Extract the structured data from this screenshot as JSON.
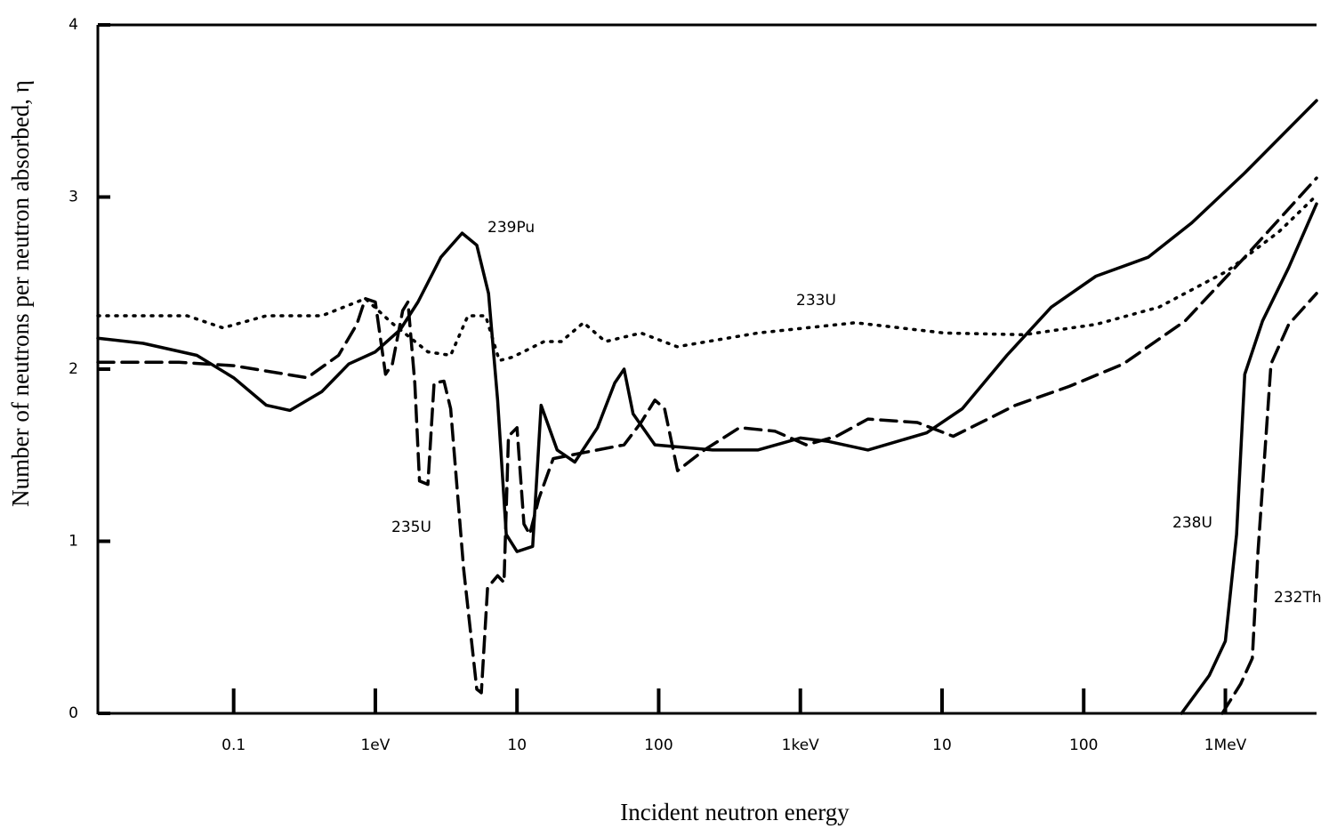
{
  "chart_data": {
    "type": "line",
    "x_label": "Incident neutron energy",
    "y_label": "Number of neutrons per neutron absorbed, η",
    "x_log": true,
    "xlim": [
      0.011,
      4400000
    ],
    "xticks": [
      0.1,
      {
        "value": 1,
        "label": "1eV"
      },
      10,
      100,
      {
        "value": 1000,
        "label": "1keV"
      },
      {
        "value": 10000,
        "label": "10"
      },
      {
        "value": 100000,
        "label": "100"
      },
      {
        "value": 1000000,
        "label": "1MeV"
      }
    ],
    "ylim": [
      0,
      4
    ],
    "yticks": [
      0,
      1,
      2,
      3,
      4
    ],
    "series": [
      {
        "name": "239Pu",
        "color": "#000000",
        "line_style": "solid",
        "x": [
          0.011,
          0.023,
          0.055,
          0.1,
          0.17,
          0.25,
          0.42,
          0.65,
          1,
          1.5,
          2.0,
          2.9,
          4.1,
          5.2,
          6.3,
          7.3,
          8.4,
          10,
          12.9,
          14.8,
          19.2,
          25.6,
          37,
          49,
          57,
          66,
          94,
          240,
          500,
          1000,
          1580,
          3000,
          7800,
          13900,
          28700,
          59000,
          122000,
          285000,
          580000,
          1370000,
          4400000
        ],
        "values": [
          2.18,
          2.15,
          2.08,
          1.95,
          1.79,
          1.76,
          1.87,
          2.03,
          2.1,
          2.23,
          2.39,
          2.65,
          2.79,
          2.72,
          2.44,
          1.82,
          1.04,
          0.94,
          0.97,
          1.79,
          1.53,
          1.46,
          1.66,
          1.92,
          2.0,
          1.74,
          1.56,
          1.53,
          1.53,
          1.6,
          1.58,
          1.53,
          1.63,
          1.77,
          2.08,
          2.36,
          2.54,
          2.65,
          2.85,
          3.14,
          3.56
        ]
      },
      {
        "name": "235U",
        "color": "#000000",
        "line_style": "dashed",
        "x": [
          0.011,
          0.041,
          0.1,
          0.33,
          0.55,
          0.74,
          0.85,
          1,
          1.18,
          1.32,
          1.56,
          1.7,
          1.9,
          2.05,
          2.35,
          2.6,
          3.05,
          3.4,
          4.2,
          5.2,
          5.6,
          6.2,
          7.3,
          8.1,
          8.7,
          10,
          11.2,
          12.3,
          14.3,
          18,
          27.5,
          57,
          75,
          94,
          110,
          136,
          210,
          372,
          660,
          1100,
          1800,
          3000,
          6700,
          12000,
          33000,
          79000,
          190000,
          520000,
          1370000,
          4400000
        ],
        "values": [
          2.04,
          2.04,
          2.02,
          1.95,
          2.08,
          2.26,
          2.41,
          2.39,
          1.97,
          2.03,
          2.34,
          2.39,
          1.92,
          1.35,
          1.33,
          1.92,
          1.93,
          1.77,
          0.84,
          0.14,
          0.12,
          0.73,
          0.8,
          0.76,
          1.61,
          1.66,
          1.1,
          1.04,
          1.25,
          1.48,
          1.51,
          1.56,
          1.69,
          1.82,
          1.77,
          1.41,
          1.53,
          1.66,
          1.64,
          1.56,
          1.61,
          1.71,
          1.69,
          1.61,
          1.79,
          1.9,
          2.03,
          2.28,
          2.65,
          3.11
        ]
      },
      {
        "name": "233U",
        "color": "#000000",
        "line_style": "dotted",
        "x": [
          0.011,
          0.047,
          0.084,
          0.17,
          0.42,
          0.85,
          1.3,
          2.35,
          3.4,
          4.5,
          6.0,
          7.5,
          9.3,
          15.5,
          20.5,
          29.5,
          42,
          75,
          135,
          500,
          2450,
          10400,
          38000,
          122000,
          340000,
          1030000,
          2400000,
          4400000
        ],
        "values": [
          2.31,
          2.31,
          2.24,
          2.31,
          2.31,
          2.41,
          2.27,
          2.1,
          2.08,
          2.31,
          2.31,
          2.05,
          2.07,
          2.16,
          2.16,
          2.27,
          2.16,
          2.21,
          2.13,
          2.21,
          2.27,
          2.21,
          2.2,
          2.26,
          2.36,
          2.57,
          2.8,
          3.01
        ]
      },
      {
        "name": "238U",
        "color": "#000000",
        "line_style": "solid",
        "x": [
          490000,
          770000,
          1000000,
          1200000,
          1370000,
          1830000,
          2800000,
          4400000
        ],
        "values": [
          0,
          0.22,
          0.42,
          1.04,
          1.97,
          2.28,
          2.59,
          2.96
        ]
      },
      {
        "name": "232Th",
        "color": "#000000",
        "line_style": "dashed",
        "x": [
          950000,
          1280000,
          1550000,
          1700000,
          2100000,
          2800000,
          4400000
        ],
        "values": [
          0,
          0.17,
          0.32,
          0.94,
          2.03,
          2.26,
          2.44
        ]
      }
    ]
  }
}
